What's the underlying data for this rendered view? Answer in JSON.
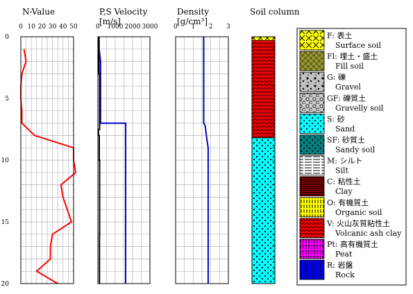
{
  "chart_data": {
    "type": "line",
    "depth_axis": {
      "range": [
        0,
        20
      ],
      "ticks": [
        0,
        5,
        10,
        15,
        20
      ],
      "inverted": true
    },
    "panels": [
      {
        "id": "nvalue",
        "title": "N-Value",
        "xlim": [
          0,
          50
        ],
        "ticks": [
          0,
          10,
          20,
          30,
          40,
          50
        ],
        "grid": true,
        "series": [
          {
            "color": "#ff0000",
            "points": [
              [
                3,
                1
              ],
              [
                5,
                2
              ],
              [
                1,
                3
              ],
              [
                0,
                4
              ],
              [
                0,
                5
              ],
              [
                1,
                6
              ],
              [
                1,
                7
              ],
              [
                13,
                8
              ],
              [
                50,
                9
              ],
              [
                50,
                10
              ],
              [
                52,
                11
              ],
              [
                38,
                12
              ],
              [
                40,
                13
              ],
              [
                48,
                15
              ],
              [
                30,
                16
              ],
              [
                28,
                17
              ],
              [
                28,
                18
              ],
              [
                15,
                19
              ],
              [
                35,
                20
              ]
            ]
          }
        ]
      },
      {
        "id": "velocity",
        "title": "P,S Velocity",
        "unit": "[m/s]",
        "xlim": [
          0,
          3000
        ],
        "ticks": [
          0,
          1000,
          2000,
          3000
        ],
        "grid": true,
        "series": [
          {
            "color": "#0000c8",
            "points": [
              [
                70,
                0
              ],
              [
                70,
                1
              ],
              [
                150,
                2
              ],
              [
                150,
                3
              ],
              [
                150,
                4
              ],
              [
                150,
                5
              ],
              [
                150,
                6
              ],
              [
                150,
                7
              ],
              [
                1600,
                7
              ],
              [
                1600,
                8
              ],
              [
                1600,
                20
              ]
            ]
          },
          {
            "color": "#000000",
            "points": [
              [
                40,
                0
              ],
              [
                40,
                1
              ],
              [
                60,
                2
              ],
              [
                60,
                3
              ],
              [
                100,
                3
              ],
              [
                100,
                4
              ],
              [
                100,
                5
              ],
              [
                100,
                6
              ],
              [
                100,
                7
              ],
              [
                100,
                7.5
              ],
              [
                30,
                7.5
              ],
              [
                30,
                8
              ],
              [
                80,
                8
              ],
              [
                80,
                10
              ],
              [
                100,
                10
              ],
              [
                100,
                12
              ],
              [
                100,
                15
              ],
              [
                100,
                16
              ],
              [
                90,
                16
              ],
              [
                90,
                20
              ]
            ]
          }
        ]
      },
      {
        "id": "density",
        "title": "Density",
        "unit": "[g/cm³]",
        "xlim": [
          0,
          3
        ],
        "ticks": [
          0,
          1,
          2,
          3
        ],
        "grid": true,
        "series": [
          {
            "color": "#0000c8",
            "points": [
              [
                1.6,
                0
              ],
              [
                1.6,
                2
              ],
              [
                1.6,
                5
              ],
              [
                1.6,
                7
              ],
              [
                1.68,
                7.2
              ],
              [
                1.75,
                8
              ],
              [
                1.85,
                9
              ],
              [
                1.85,
                10
              ],
              [
                1.85,
                13
              ],
              [
                1.85,
                17
              ],
              [
                1.85,
                20
              ]
            ]
          }
        ]
      }
    ],
    "soil_column": {
      "title": "Soil column",
      "layers": [
        {
          "from": 0,
          "to": 0.3,
          "type": "F"
        },
        {
          "from": 0.3,
          "to": 8.2,
          "type": "V"
        },
        {
          "from": 8.2,
          "to": 20,
          "type": "S"
        }
      ]
    },
    "legend": [
      {
        "code": "F:",
        "ja": "表土",
        "en": "Surface soil",
        "fill": "#ffff00",
        "pattern": "x",
        "ink": "#000000"
      },
      {
        "code": "Fl:",
        "ja": "埋土・盛土",
        "en": "Fill soil",
        "fill": "#6b6b10",
        "pattern": "lattice",
        "ink": "#bbbb66"
      },
      {
        "code": "G:",
        "ja": "礫",
        "en": "Gravel",
        "fill": "#c0c0c0",
        "pattern": "gravel",
        "ink": "#000000"
      },
      {
        "code": "GF:",
        "ja": "礫質土",
        "en": "Gravelly soil",
        "fill": "#d0d0d0",
        "pattern": "circles",
        "ink": "#000000"
      },
      {
        "code": "S:",
        "ja": "砂",
        "en": "Sand",
        "fill": "#00ffff",
        "pattern": "dots",
        "ink": "#000000"
      },
      {
        "code": "SF:",
        "ja": "砂質土",
        "en": "Sandy soil",
        "fill": "#007f7f",
        "pattern": "dots",
        "ink": "#000000"
      },
      {
        "code": "M:",
        "ja": "シルト",
        "en": "Silt",
        "fill": "#ffffff",
        "pattern": "dashes",
        "ink": "#000000"
      },
      {
        "code": "C:",
        "ja": "粘性土",
        "en": "Clay",
        "fill": "#8b0000",
        "pattern": "hlines",
        "ink": "#000000"
      },
      {
        "code": "O:",
        "ja": "有機質土",
        "en": "Organic soil",
        "fill": "#ffff00",
        "pattern": "vlines",
        "ink": "#000000"
      },
      {
        "code": "V:",
        "ja": "火山灰質粘性土",
        "en": "Volcanic ash clay",
        "fill": "#ff0000",
        "pattern": "zigzag",
        "ink": "#000000"
      },
      {
        "code": "Pt:",
        "ja": "高有機質土",
        "en": "Peat",
        "fill": "#ff00ff",
        "pattern": "peat",
        "ink": "#000000"
      },
      {
        "code": "R:",
        "ja": "岩盤",
        "en": "Rock",
        "fill": "#0000ff",
        "pattern": "rock",
        "ink": "#000000"
      }
    ]
  }
}
